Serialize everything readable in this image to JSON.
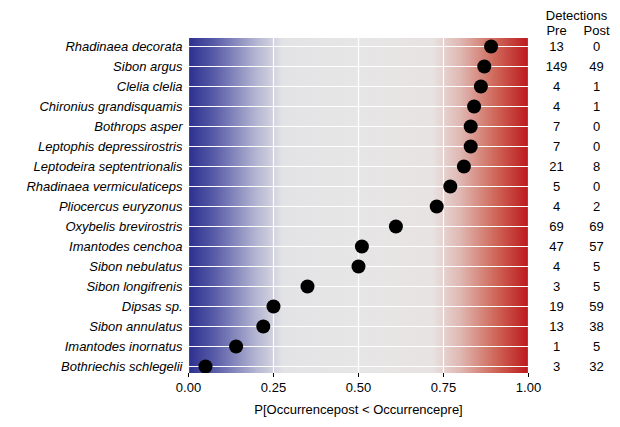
{
  "chart_data": {
    "type": "dot",
    "orientation": "horizontal",
    "categories": [
      "Rhadinaea decorata",
      "Sibon argus",
      "Clelia clelia",
      "Chironius grandisquamis",
      "Bothrops asper",
      "Leptophis depressirostris",
      "Leptodeira septentrionalis",
      "Rhadinaea vermiculaticeps",
      "Pliocercus euryzonus",
      "Oxybelis brevirostris",
      "Imantodes cenchoa",
      "Sibon nebulatus",
      "Sibon longifrenis",
      "Dipsas sp.",
      "Sibon annulatus",
      "Imantodes inornatus",
      "Bothriechis schlegelii"
    ],
    "values": [
      0.89,
      0.87,
      0.86,
      0.84,
      0.83,
      0.83,
      0.81,
      0.77,
      0.73,
      0.61,
      0.51,
      0.5,
      0.35,
      0.25,
      0.22,
      0.14,
      0.05
    ],
    "color": "#000000",
    "x_label": "P[Occurrencepost < Occurrencepre]",
    "xlim": [
      0,
      1
    ],
    "xticks": [
      {
        "value": 0,
        "label": "0.00"
      },
      {
        "value": 0.25,
        "label": "0.25"
      },
      {
        "value": 0.5,
        "label": "0.50"
      },
      {
        "value": 0.75,
        "label": "0.75"
      },
      {
        "value": 1,
        "label": "1.00"
      }
    ],
    "grid": true,
    "detections_header": "Detections",
    "pre_label": "Pre",
    "post_label": "Post",
    "pre": [
      13,
      149,
      4,
      4,
      7,
      7,
      21,
      5,
      4,
      69,
      47,
      4,
      3,
      19,
      13,
      1,
      3
    ],
    "post": [
      0,
      49,
      1,
      1,
      0,
      0,
      8,
      0,
      2,
      69,
      57,
      5,
      5,
      59,
      38,
      5,
      32
    ]
  }
}
